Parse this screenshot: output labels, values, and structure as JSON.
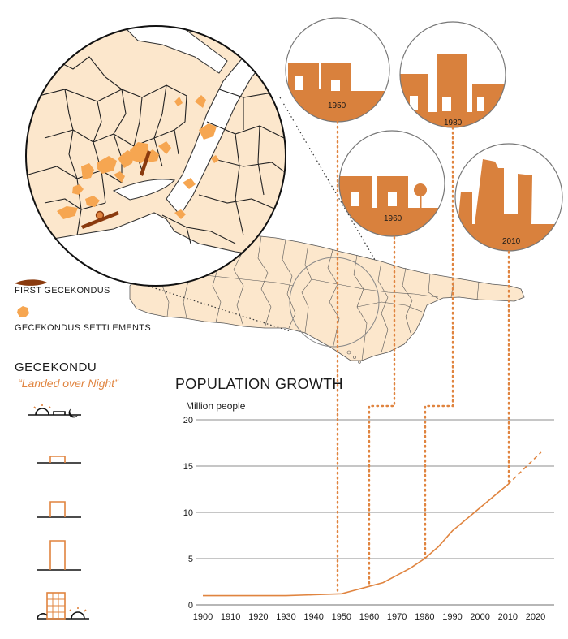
{
  "colors": {
    "accent": "#e0843f",
    "accent_dark": "#a3521f",
    "map_fill": "#fce7cc",
    "settlement": "#f6a651",
    "grid": "#8c8c8c",
    "border": "#333333"
  },
  "legend": {
    "first_gecekondus": "FIRST GECEKONDUS",
    "settlements": "GECEKONDUS SETTLEMENTS"
  },
  "gecekondu": {
    "title": "GECEKONDU",
    "subtitle": "“Landed over Night”",
    "steps": [
      "sunset-hut",
      "moon-foundation",
      "moon-walls",
      "moon-tall-house",
      "sunrise-apartment"
    ]
  },
  "era_circles": [
    {
      "year": "1950"
    },
    {
      "year": "1980"
    },
    {
      "year": "1960"
    },
    {
      "year": "2010"
    }
  ],
  "chart_data": {
    "type": "line",
    "title": "POPULATION GROWTH",
    "ylabel": "Million people",
    "xlabel": "",
    "ylim": [
      0,
      20
    ],
    "xlim": [
      1900,
      2020
    ],
    "y_ticks": [
      0,
      5,
      10,
      15,
      20
    ],
    "x_ticks": [
      1900,
      1910,
      1920,
      1930,
      1940,
      1950,
      1960,
      1970,
      1980,
      1990,
      2000,
      2010,
      2020
    ],
    "series": [
      {
        "style": "solid",
        "x": [
          1900,
          1910,
          1920,
          1930,
          1940,
          1950,
          1955,
          1960,
          1965,
          1970,
          1975,
          1980,
          1985,
          1990,
          2000,
          2010
        ],
        "y": [
          1.0,
          1.0,
          1.0,
          1.0,
          1.1,
          1.2,
          1.6,
          2.0,
          2.4,
          3.2,
          4.0,
          5.0,
          6.3,
          8.0,
          10.5,
          13.0
        ]
      },
      {
        "style": "dashed",
        "x": [
          2010,
          2022
        ],
        "y": [
          13.0,
          16.5
        ]
      }
    ],
    "markers": [
      1950,
      1960,
      1980,
      2010
    ]
  }
}
